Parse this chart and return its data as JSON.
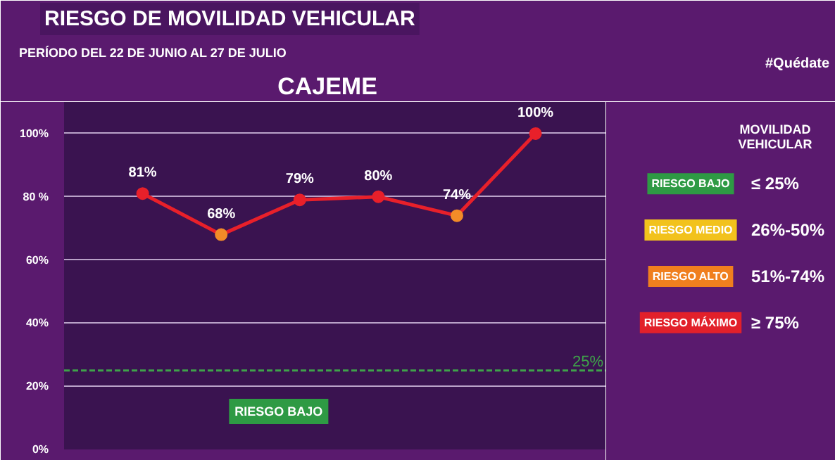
{
  "chart_data": {
    "type": "line",
    "title": "RIESGO DE MOVILIDAD VEHICULAR",
    "subtitle": "PERÍODO DEL 22 DE JUNIO AL 27 DE JULIO",
    "categories": [
      null,
      null,
      null,
      null,
      null,
      null
    ],
    "series": [
      {
        "color": "#e8202a",
        "values": [
          81,
          68,
          79,
          80,
          74,
          100
        ],
        "colors": [
          "#e8202a",
          "#f28c28",
          "#e8202a",
          "#e8202a",
          "#f28c28",
          "#e8202a"
        ],
        "value_labels": [
          "81%",
          "68%",
          "79%",
          "80%",
          "74%",
          "100%"
        ]
      }
    ],
    "ylim": [
      0,
      110
    ],
    "yticks": [
      {
        "value": 0,
        "label": "0%"
      },
      {
        "value": 20,
        "label": "20%"
      },
      {
        "value": 40,
        "label": "40%"
      },
      {
        "value": 60,
        "label": "60%"
      },
      {
        "value": 80,
        "label": "80 %"
      },
      {
        "value": 100,
        "label": "100%"
      }
    ],
    "grid": "y",
    "marker": "circle",
    "line_style": "solid",
    "ref_lines": [
      {
        "axis": "y",
        "value": 25,
        "label": "25%",
        "color": "#3fa24a",
        "line_style": "dashed"
      }
    ],
    "legend_title": "MOVILIDAD VEHICULAR",
    "annotations": [
      "CAJEME",
      "#Quédate",
      "RIESGO BAJO",
      "RIESGO BAJO",
      "≤ 25%",
      "RIESGO MEDIO",
      "26%-50%",
      "RIESGO ALTO",
      "51%-74%",
      "RIESGO MÁXIMO",
      "≥ 75%"
    ]
  }
}
